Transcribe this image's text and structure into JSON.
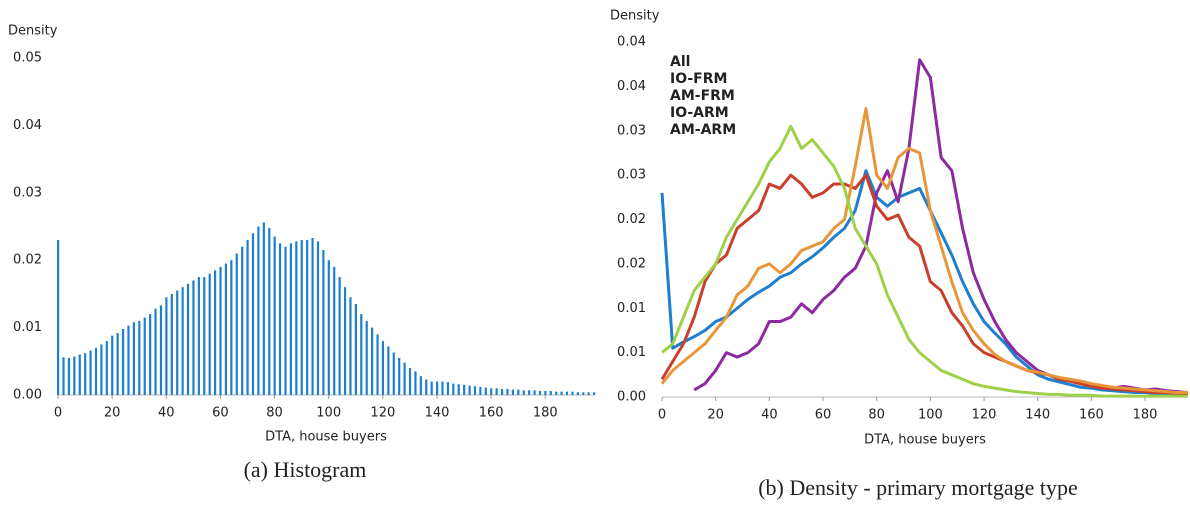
{
  "chart_data": [
    {
      "type": "bar",
      "caption": "(a) Histogram",
      "ylabel": "Density",
      "xlabel": "DTA, house buyers",
      "color": "#1f7fcf",
      "x": [
        0,
        2,
        4,
        6,
        8,
        10,
        12,
        14,
        16,
        18,
        20,
        22,
        24,
        26,
        28,
        30,
        32,
        34,
        36,
        38,
        40,
        42,
        44,
        46,
        48,
        50,
        52,
        54,
        56,
        58,
        60,
        62,
        64,
        66,
        68,
        70,
        72,
        74,
        76,
        78,
        80,
        82,
        84,
        86,
        88,
        90,
        92,
        94,
        96,
        98,
        100,
        102,
        104,
        106,
        108,
        110,
        112,
        114,
        116,
        118,
        120,
        122,
        124,
        126,
        128,
        130,
        132,
        134,
        136,
        138,
        140,
        142,
        144,
        146,
        148,
        150,
        152,
        154,
        156,
        158,
        160,
        162,
        164,
        166,
        168,
        170,
        172,
        174,
        176,
        178,
        180,
        182,
        184,
        186,
        188,
        190,
        192,
        194,
        196,
        198
      ],
      "values": [
        0.023,
        0.0056,
        0.0055,
        0.0057,
        0.006,
        0.0062,
        0.0066,
        0.007,
        0.0075,
        0.008,
        0.0088,
        0.0092,
        0.0098,
        0.0103,
        0.0108,
        0.011,
        0.0115,
        0.012,
        0.0128,
        0.0133,
        0.0145,
        0.015,
        0.0155,
        0.016,
        0.0165,
        0.017,
        0.0175,
        0.0175,
        0.018,
        0.0185,
        0.019,
        0.0195,
        0.02,
        0.021,
        0.022,
        0.023,
        0.024,
        0.025,
        0.0256,
        0.0248,
        0.0235,
        0.0225,
        0.022,
        0.0225,
        0.0228,
        0.023,
        0.023,
        0.0233,
        0.0228,
        0.0215,
        0.02,
        0.019,
        0.0175,
        0.016,
        0.0145,
        0.0135,
        0.012,
        0.011,
        0.01,
        0.009,
        0.008,
        0.0072,
        0.0063,
        0.0055,
        0.0048,
        0.004,
        0.0035,
        0.0028,
        0.0023,
        0.002,
        0.002,
        0.002,
        0.0019,
        0.0017,
        0.0016,
        0.0015,
        0.0014,
        0.0013,
        0.0012,
        0.0011,
        0.001,
        0.001,
        0.0009,
        0.0009,
        0.0008,
        0.0008,
        0.0007,
        0.0007,
        0.0007,
        0.0006,
        0.0006,
        0.0006,
        0.0005,
        0.0005,
        0.0005,
        0.0005,
        0.0004,
        0.0004,
        0.0004,
        0.0004
      ],
      "xlim": [
        0,
        198
      ],
      "xticks": [
        0,
        20,
        40,
        60,
        80,
        100,
        120,
        140,
        160,
        180
      ],
      "ylim": [
        0,
        0.05
      ],
      "yticks": [
        {
          "value": 0,
          "label": "0.00"
        },
        0.01,
        0.02,
        0.03,
        0.04,
        0.05
      ]
    },
    {
      "type": "line",
      "caption": "(b) Density - primary mortgage type",
      "ylabel": "Density",
      "xlabel": "DTA, house buyers",
      "legend": "upper left",
      "x": [
        0,
        4,
        8,
        12,
        16,
        20,
        24,
        28,
        32,
        36,
        40,
        44,
        48,
        52,
        56,
        60,
        64,
        68,
        72,
        76,
        80,
        84,
        88,
        92,
        96,
        100,
        104,
        108,
        112,
        116,
        120,
        124,
        128,
        132,
        136,
        140,
        144,
        148,
        152,
        156,
        160,
        164,
        168,
        172,
        176,
        180,
        184,
        188,
        192,
        196
      ],
      "series": [
        {
          "name": "All",
          "color": "#1f7fcf",
          "values": [
            0.023,
            0.0055,
            0.0062,
            0.0068,
            0.0075,
            0.0085,
            0.009,
            0.01,
            0.011,
            0.0118,
            0.0125,
            0.0135,
            0.014,
            0.015,
            0.0158,
            0.0168,
            0.018,
            0.019,
            0.021,
            0.0255,
            0.0225,
            0.0215,
            0.0225,
            0.023,
            0.0235,
            0.021,
            0.0185,
            0.016,
            0.013,
            0.0105,
            0.0085,
            0.0072,
            0.006,
            0.0045,
            0.0035,
            0.0025,
            0.002,
            0.0017,
            0.0014,
            0.0011,
            0.001,
            0.0008,
            0.0007,
            0.0006,
            0.0005,
            0.0005,
            0.0004,
            0.0004,
            0.0003,
            0.0003
          ]
        },
        {
          "name": "IO-FRM",
          "color": "#8e2aa0",
          "values": [
            null,
            null,
            null,
            0.0008,
            0.0015,
            0.003,
            0.005,
            0.0045,
            0.005,
            0.006,
            0.0085,
            0.0085,
            0.009,
            0.0105,
            0.0095,
            0.011,
            0.012,
            0.0135,
            0.0145,
            0.017,
            0.023,
            0.0255,
            0.022,
            0.028,
            0.038,
            0.036,
            0.027,
            0.0255,
            0.019,
            0.014,
            0.011,
            0.0085,
            0.0065,
            0.005,
            0.004,
            0.003,
            0.0025,
            0.002,
            0.0018,
            0.0015,
            0.0013,
            0.0012,
            0.001,
            0.0012,
            0.001,
            0.0008,
            0.0009,
            0.0007,
            0.0006,
            0.0005
          ]
        },
        {
          "name": "AM-FRM",
          "color": "#c8402a",
          "values": [
            0.002,
            0.004,
            0.006,
            0.009,
            0.013,
            0.015,
            0.016,
            0.019,
            0.02,
            0.021,
            0.024,
            0.0235,
            0.025,
            0.024,
            0.0225,
            0.023,
            0.024,
            0.024,
            0.0235,
            0.025,
            0.0215,
            0.02,
            0.0205,
            0.018,
            0.017,
            0.013,
            0.012,
            0.0095,
            0.008,
            0.006,
            0.005,
            0.0045,
            0.004,
            0.0035,
            0.003,
            0.0027,
            0.0025,
            0.002,
            0.0018,
            0.0015,
            0.0012,
            0.001,
            0.0009,
            0.0008,
            0.0007,
            0.0006,
            0.0005,
            0.0005,
            0.0004,
            0.0004
          ]
        },
        {
          "name": "IO-ARM",
          "color": "#e8963a",
          "values": [
            0.0015,
            0.003,
            0.004,
            0.005,
            0.006,
            0.0075,
            0.009,
            0.0115,
            0.0125,
            0.0145,
            0.015,
            0.014,
            0.015,
            0.0165,
            0.017,
            0.0175,
            0.019,
            0.02,
            0.026,
            0.0325,
            0.025,
            0.0235,
            0.027,
            0.028,
            0.0275,
            0.021,
            0.017,
            0.013,
            0.0095,
            0.0075,
            0.006,
            0.0048,
            0.004,
            0.0035,
            0.003,
            0.0028,
            0.0025,
            0.0022,
            0.002,
            0.0018,
            0.0015,
            0.0013,
            0.0011,
            0.001,
            0.0009,
            0.0008,
            0.0007,
            0.0006,
            0.0005,
            0.0005
          ]
        },
        {
          "name": "AM-ARM",
          "color": "#9ed048",
          "values": [
            0.005,
            0.006,
            0.009,
            0.012,
            0.0135,
            0.015,
            0.018,
            0.02,
            0.022,
            0.024,
            0.0265,
            0.028,
            0.0305,
            0.028,
            0.029,
            0.0275,
            0.026,
            0.0235,
            0.019,
            0.017,
            0.015,
            0.0115,
            0.009,
            0.0065,
            0.005,
            0.004,
            0.003,
            0.0025,
            0.002,
            0.0015,
            0.0012,
            0.001,
            0.0008,
            0.0006,
            0.0005,
            0.0004,
            0.0003,
            0.0003,
            0.0002,
            0.0002,
            0.0002,
            0.0001,
            0.0001,
            0.0001,
            0.0001,
            0.0001,
            0.0001,
            0.0001,
            0.0001,
            0.0001
          ]
        }
      ],
      "xlim": [
        0,
        196
      ],
      "xticks": [
        0,
        20,
        40,
        60,
        80,
        100,
        120,
        140,
        160,
        180
      ],
      "ylim": [
        0,
        0.04
      ],
      "yticks": [
        {
          "value": 0,
          "label": "0.00"
        },
        {
          "value": 0.005,
          "label": "0.01"
        },
        0.01,
        {
          "value": 0.015,
          "label": "0.02"
        },
        0.02,
        {
          "value": 0.025,
          "label": "0.03"
        },
        0.03,
        {
          "value": 0.035,
          "label": "0.04"
        },
        0.04
      ]
    }
  ]
}
